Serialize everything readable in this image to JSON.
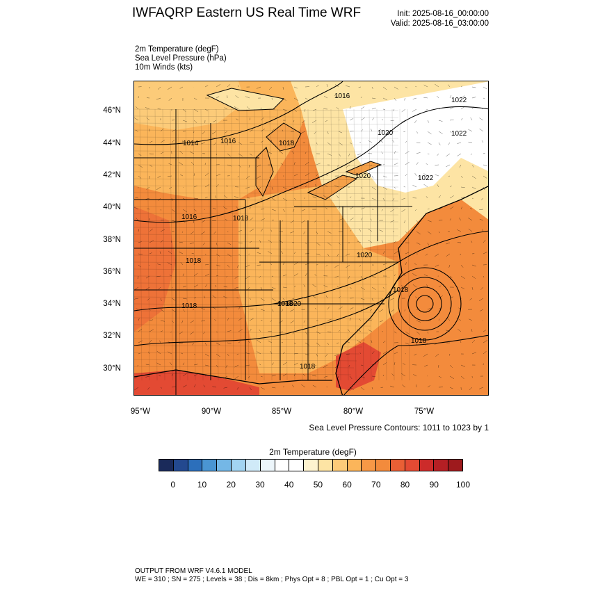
{
  "header": {
    "title": "IWFAQRP Eastern US Real Time WRF",
    "init": "Init: 2025-08-16_00:00:00",
    "valid": "Valid: 2025-08-16_03:00:00"
  },
  "fields": [
    "2m Temperature   (degF)",
    "Sea Level Pressure   (hPa)",
    "10m Winds   (kts)"
  ],
  "map": {
    "lat_labels": [
      "46°N",
      "44°N",
      "42°N",
      "40°N",
      "38°N",
      "36°N",
      "34°N",
      "32°N",
      "30°N"
    ],
    "lon_labels": [
      "95°W",
      "90°W",
      "85°W",
      "80°W",
      "75°W"
    ],
    "isobar_labels": [
      "1016",
      "1022",
      "1020",
      "1022",
      "1014",
      "1016",
      "1018",
      "1020",
      "1022",
      "1016",
      "1018",
      "1018",
      "1020",
      "1018",
      "1018",
      "1018",
      "1020",
      "1018",
      "1018",
      "1018"
    ],
    "colors": {
      "hot": "#e34a33",
      "warm": "#f38b3c",
      "mild": "#fbb55a",
      "cool": "#fde4a4",
      "cold": "#ffffff"
    }
  },
  "slp_note": "Sea Level Pressure Contours: 1011 to 1023 by 1",
  "colorbar": {
    "title": "2m Temperature  (degF)",
    "labels": [
      "0",
      "10",
      "20",
      "30",
      "40",
      "50",
      "60",
      "70",
      "80",
      "90",
      "100"
    ],
    "colors": [
      "#1a2a5a",
      "#23498f",
      "#2c6fbb",
      "#4a95d2",
      "#74b7e6",
      "#a2d4f2",
      "#d0eaf8",
      "#edf6fb",
      "#ffffff",
      "#ffffff",
      "#fef3cf",
      "#fde4a4",
      "#fccb79",
      "#fbb55a",
      "#f89846",
      "#f38b3c",
      "#e95f35",
      "#e34a33",
      "#cc2b2a",
      "#b51f24",
      "#9e1a1d"
    ]
  },
  "footer": {
    "line1": "OUTPUT FROM WRF V4.6.1 MODEL",
    "line2": "WE = 310 ; SN = 275 ; Levels = 38 ; Dis = 8km ; Phys Opt = 8 ; PBL Opt = 1 ; Cu Opt = 3"
  }
}
